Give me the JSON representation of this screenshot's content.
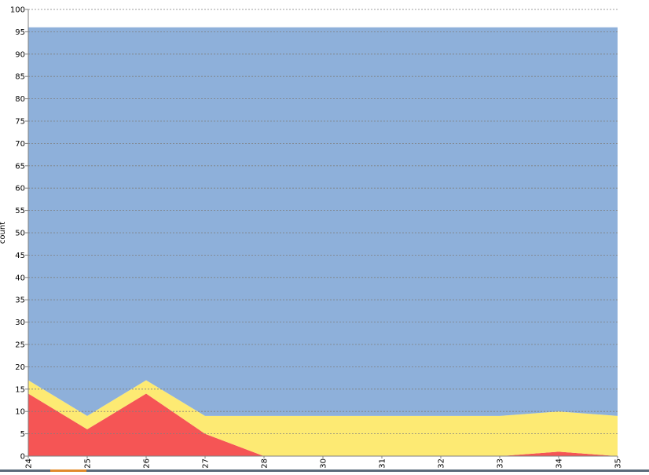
{
  "chart_data": {
    "type": "area",
    "stacked": true,
    "title": "",
    "xlabel": "",
    "ylabel": "count",
    "ylim": [
      0,
      100
    ],
    "yticks": [
      0,
      5,
      10,
      15,
      20,
      25,
      30,
      35,
      40,
      45,
      50,
      55,
      60,
      65,
      70,
      75,
      80,
      85,
      90,
      95,
      100
    ],
    "grid": true,
    "categories": [
      "24",
      "25",
      "26",
      "27",
      "28",
      "30",
      "31",
      "32",
      "33",
      "34",
      "35"
    ],
    "series": [
      {
        "color": "#f55555",
        "values": [
          14,
          6,
          14,
          5,
          0,
          0,
          0,
          0,
          0,
          1,
          0
        ]
      },
      {
        "color": "#fdea73",
        "values": [
          3,
          3,
          3,
          4,
          9,
          9,
          9,
          9,
          9,
          9,
          9
        ]
      },
      {
        "color": "#8eb0da",
        "values": [
          79,
          87,
          79,
          87,
          87,
          87,
          87,
          87,
          87,
          86,
          87
        ]
      }
    ]
  }
}
